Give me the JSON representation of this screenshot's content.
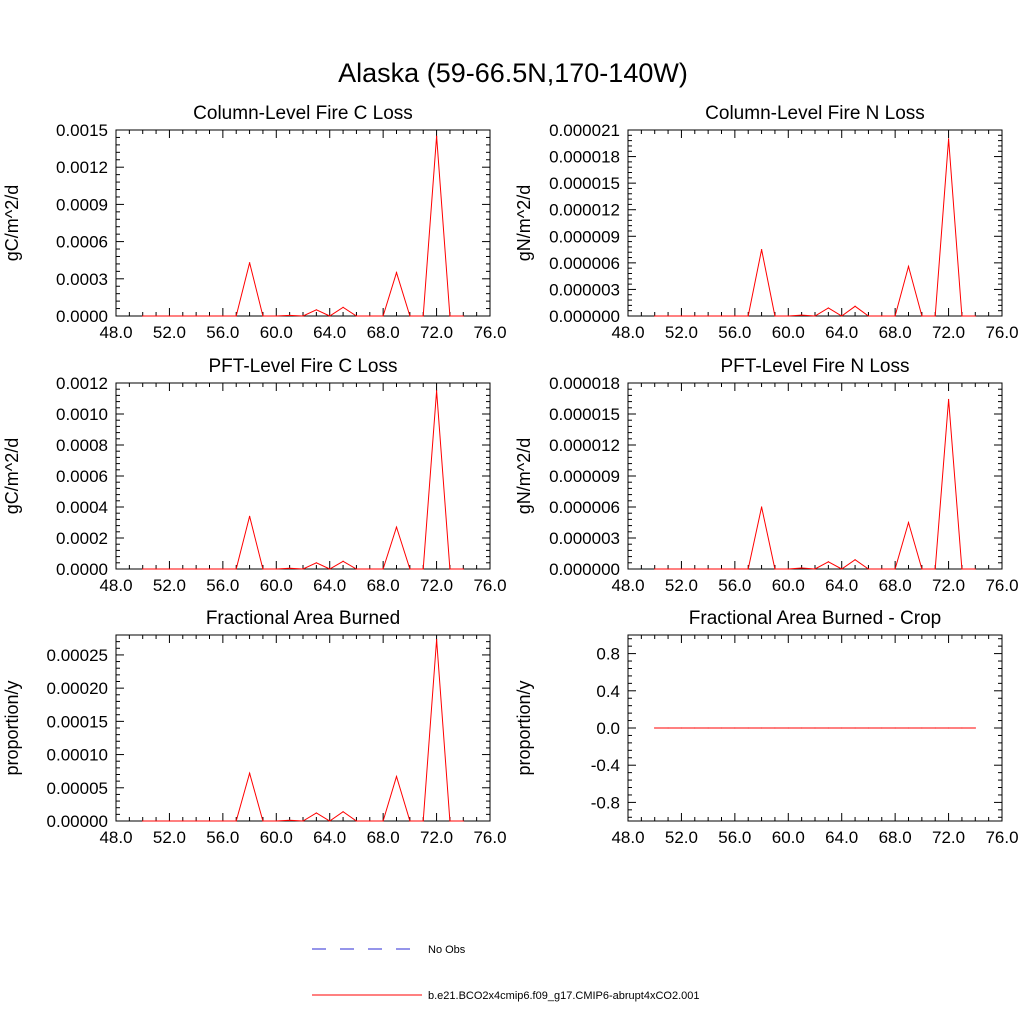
{
  "figure_title": "Alaska (59-66.5N,170-140W)",
  "legend": [
    {
      "label": "No Obs",
      "color": "#2b2bd6",
      "style": "dashed"
    },
    {
      "label": "b.e21.BCO2x4cmip6.f09_g17.CMIP6-abrupt4xCO2.001",
      "color": "#ff0000",
      "style": "solid"
    }
  ],
  "chart_data": [
    {
      "type": "line",
      "title": "Column-Level Fire C Loss",
      "xlabel": "",
      "ylabel": "gC/m^2/d",
      "xlim": [
        48,
        76
      ],
      "ylim": [
        0,
        0.0015
      ],
      "xticks": [
        "48.0",
        "52.0",
        "56.0",
        "60.0",
        "64.0",
        "68.0",
        "72.0",
        "76.0"
      ],
      "yticks": [
        {
          "value": 0,
          "label": "0.0000"
        },
        {
          "value": 0.0003,
          "label": "0.0003"
        },
        {
          "value": 0.0006,
          "label": "0.0006"
        },
        {
          "value": 0.0009,
          "label": "0.0009"
        },
        {
          "value": 0.0012,
          "label": "0.0012"
        },
        {
          "value": 0.0015,
          "label": "0.0015"
        }
      ],
      "grid": false,
      "x": [
        50,
        51,
        52,
        53,
        54,
        55,
        56,
        57,
        58,
        59,
        60,
        61,
        62,
        63,
        64,
        65,
        66,
        67,
        68,
        69,
        70,
        71,
        72,
        73,
        74
      ],
      "series": [
        {
          "name": "b.e21.BCO2x4cmip6.f09_g17.CMIP6-abrupt4xCO2.001",
          "color": "#ff0000",
          "values": [
            0,
            0,
            0,
            0,
            0,
            0,
            0,
            0,
            0.00043,
            0,
            0,
            5e-06,
            0,
            5e-05,
            0,
            7e-05,
            0,
            0,
            0,
            0.00035,
            0,
            0,
            0.00145,
            0,
            0
          ]
        }
      ]
    },
    {
      "type": "line",
      "title": "Column-Level Fire N Loss",
      "xlabel": "",
      "ylabel": "gN/m^2/d",
      "xlim": [
        48,
        76
      ],
      "ylim": [
        0,
        2.1e-05
      ],
      "xticks": [
        "48.0",
        "52.0",
        "56.0",
        "60.0",
        "64.0",
        "68.0",
        "72.0",
        "76.0"
      ],
      "yticks": [
        {
          "value": 0,
          "label": "0.000000"
        },
        {
          "value": 3e-06,
          "label": "0.000003"
        },
        {
          "value": 6e-06,
          "label": "0.000006"
        },
        {
          "value": 9e-06,
          "label": "0.000009"
        },
        {
          "value": 1.2e-05,
          "label": "0.000012"
        },
        {
          "value": 1.5e-05,
          "label": "0.000015"
        },
        {
          "value": 1.8e-05,
          "label": "0.000018"
        },
        {
          "value": 2.1e-05,
          "label": "0.000021"
        }
      ],
      "grid": false,
      "x": [
        50,
        51,
        52,
        53,
        54,
        55,
        56,
        57,
        58,
        59,
        60,
        61,
        62,
        63,
        64,
        65,
        66,
        67,
        68,
        69,
        70,
        71,
        72,
        73,
        74
      ],
      "series": [
        {
          "name": "b.e21.BCO2x4cmip6.f09_g17.CMIP6-abrupt4xCO2.001",
          "color": "#ff0000",
          "values": [
            0,
            0,
            0,
            0,
            0,
            0,
            0,
            0,
            7.5e-06,
            0,
            0,
            1e-07,
            0,
            9e-07,
            0,
            1.1e-06,
            0,
            0,
            0,
            5.6e-06,
            0,
            0,
            2e-05,
            0,
            0
          ]
        }
      ]
    },
    {
      "type": "line",
      "title": "PFT-Level Fire C Loss",
      "xlabel": "",
      "ylabel": "gC/m^2/d",
      "xlim": [
        48,
        76
      ],
      "ylim": [
        0,
        0.0012
      ],
      "xticks": [
        "48.0",
        "52.0",
        "56.0",
        "60.0",
        "64.0",
        "68.0",
        "72.0",
        "76.0"
      ],
      "yticks": [
        {
          "value": 0,
          "label": "0.0000"
        },
        {
          "value": 0.0002,
          "label": "0.0002"
        },
        {
          "value": 0.0004,
          "label": "0.0004"
        },
        {
          "value": 0.0006,
          "label": "0.0006"
        },
        {
          "value": 0.0008,
          "label": "0.0008"
        },
        {
          "value": 0.001,
          "label": "0.0010"
        },
        {
          "value": 0.0012,
          "label": "0.0012"
        }
      ],
      "grid": false,
      "x": [
        50,
        51,
        52,
        53,
        54,
        55,
        56,
        57,
        58,
        59,
        60,
        61,
        62,
        63,
        64,
        65,
        66,
        67,
        68,
        69,
        70,
        71,
        72,
        73,
        74
      ],
      "series": [
        {
          "name": "b.e21.BCO2x4cmip6.f09_g17.CMIP6-abrupt4xCO2.001",
          "color": "#ff0000",
          "values": [
            0,
            0,
            0,
            0,
            0,
            0,
            0,
            0,
            0.00034,
            0,
            0,
            5e-06,
            0,
            4e-05,
            0,
            5e-05,
            0,
            0,
            0,
            0.00027,
            0,
            0,
            0.00115,
            0,
            0
          ]
        }
      ]
    },
    {
      "type": "line",
      "title": "PFT-Level Fire N Loss",
      "xlabel": "",
      "ylabel": "gN/m^2/d",
      "xlim": [
        48,
        76
      ],
      "ylim": [
        0,
        1.8e-05
      ],
      "xticks": [
        "48.0",
        "52.0",
        "56.0",
        "60.0",
        "64.0",
        "68.0",
        "72.0",
        "76.0"
      ],
      "yticks": [
        {
          "value": 0,
          "label": "0.000000"
        },
        {
          "value": 3e-06,
          "label": "0.000003"
        },
        {
          "value": 6e-06,
          "label": "0.000006"
        },
        {
          "value": 9e-06,
          "label": "0.000009"
        },
        {
          "value": 1.2e-05,
          "label": "0.000012"
        },
        {
          "value": 1.5e-05,
          "label": "0.000015"
        },
        {
          "value": 1.8e-05,
          "label": "0.000018"
        }
      ],
      "grid": false,
      "x": [
        50,
        51,
        52,
        53,
        54,
        55,
        56,
        57,
        58,
        59,
        60,
        61,
        62,
        63,
        64,
        65,
        66,
        67,
        68,
        69,
        70,
        71,
        72,
        73,
        74
      ],
      "series": [
        {
          "name": "b.e21.BCO2x4cmip6.f09_g17.CMIP6-abrupt4xCO2.001",
          "color": "#ff0000",
          "values": [
            0,
            0,
            0,
            0,
            0,
            0,
            0,
            0,
            6e-06,
            0,
            0,
            1e-07,
            0,
            7e-07,
            0,
            9e-07,
            0,
            0,
            0,
            4.5e-06,
            0,
            0,
            1.64e-05,
            0,
            0
          ]
        }
      ]
    },
    {
      "type": "line",
      "title": "Fractional Area Burned",
      "xlabel": "",
      "ylabel": "proportion/y",
      "xlim": [
        48,
        76
      ],
      "ylim": [
        0,
        0.00028
      ],
      "xticks": [
        "48.0",
        "52.0",
        "56.0",
        "60.0",
        "64.0",
        "68.0",
        "72.0",
        "76.0"
      ],
      "yticks": [
        {
          "value": 0,
          "label": "0.00000"
        },
        {
          "value": 5e-05,
          "label": "0.00005"
        },
        {
          "value": 0.0001,
          "label": "0.00010"
        },
        {
          "value": 0.00015,
          "label": "0.00015"
        },
        {
          "value": 0.0002,
          "label": "0.00020"
        },
        {
          "value": 0.00025,
          "label": "0.00025"
        }
      ],
      "grid": false,
      "x": [
        50,
        51,
        52,
        53,
        54,
        55,
        56,
        57,
        58,
        59,
        60,
        61,
        62,
        63,
        64,
        65,
        66,
        67,
        68,
        69,
        70,
        71,
        72,
        73,
        74
      ],
      "series": [
        {
          "name": "b.e21.BCO2x4cmip6.f09_g17.CMIP6-abrupt4xCO2.001",
          "color": "#ff0000",
          "values": [
            0,
            0,
            0,
            0,
            0,
            0,
            0,
            0,
            7.2e-05,
            0,
            0,
            1e-06,
            0,
            1.2e-05,
            0,
            1.4e-05,
            0,
            0,
            0,
            6.7e-05,
            0,
            0,
            0.000273,
            0,
            0
          ]
        }
      ]
    },
    {
      "type": "line",
      "title": "Fractional Area Burned - Crop",
      "xlabel": "",
      "ylabel": "proportion/y",
      "xlim": [
        48,
        76
      ],
      "ylim": [
        -1,
        1
      ],
      "xticks": [
        "48.0",
        "52.0",
        "56.0",
        "60.0",
        "64.0",
        "68.0",
        "72.0",
        "76.0"
      ],
      "yticks": [
        {
          "value": -0.8,
          "label": "-0.8"
        },
        {
          "value": -0.4,
          "label": "-0.4"
        },
        {
          "value": 0,
          "label": "0.0"
        },
        {
          "value": 0.4,
          "label": "0.4"
        },
        {
          "value": 0.8,
          "label": "0.8"
        }
      ],
      "grid": false,
      "x": [
        50,
        51,
        52,
        53,
        54,
        55,
        56,
        57,
        58,
        59,
        60,
        61,
        62,
        63,
        64,
        65,
        66,
        67,
        68,
        69,
        70,
        71,
        72,
        73,
        74
      ],
      "series": [
        {
          "name": "b.e21.BCO2x4cmip6.f09_g17.CMIP6-abrupt4xCO2.001",
          "color": "#ff0000",
          "values": [
            0,
            0,
            0,
            0,
            0,
            0,
            0,
            0,
            0,
            0,
            0,
            0,
            0,
            0,
            0,
            0,
            0,
            0,
            0,
            0,
            0,
            0,
            0,
            0,
            0
          ]
        }
      ]
    }
  ]
}
